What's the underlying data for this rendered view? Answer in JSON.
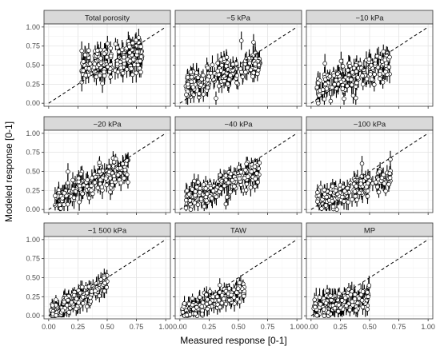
{
  "figure": {
    "xlabel": "Measured response [0-1]",
    "ylabel": "Modeled response [0-1]"
  },
  "chart_data": {
    "type": "scatter",
    "xlim": [
      0,
      1
    ],
    "ylim": [
      0,
      1
    ],
    "x_ticks": [
      "0.00",
      "0.25",
      "0.50",
      "0.75",
      "1.00"
    ],
    "y_ticks": [
      "0.00",
      "0.25",
      "0.50",
      "0.75",
      "1.00"
    ],
    "grid": true,
    "reference_line": {
      "slope": 1,
      "intercept": 0,
      "style": "dashed"
    },
    "point_style": "white circles with black outline and black vertical error bars",
    "panels": [
      {
        "title": "Total porosity",
        "x_range": [
          0.28,
          0.8
        ],
        "center": [
          0.52,
          0.55
        ],
        "slope": 0.4,
        "spread": 0.11,
        "err": 0.1
      },
      {
        "title": "−5 kPa",
        "x_range": [
          0.05,
          0.7
        ],
        "center": [
          0.37,
          0.4
        ],
        "slope": 0.5,
        "spread": 0.09,
        "err": 0.1
      },
      {
        "title": "−10 kPa",
        "x_range": [
          0.05,
          0.68
        ],
        "center": [
          0.35,
          0.35
        ],
        "slope": 0.55,
        "spread": 0.1,
        "err": 0.1
      },
      {
        "title": "−20 kPa",
        "x_range": [
          0.05,
          0.68
        ],
        "center": [
          0.33,
          0.32
        ],
        "slope": 0.65,
        "spread": 0.09,
        "err": 0.09
      },
      {
        "title": "−40 kPa",
        "x_range": [
          0.05,
          0.68
        ],
        "center": [
          0.35,
          0.3
        ],
        "slope": 0.6,
        "spread": 0.09,
        "err": 0.09
      },
      {
        "title": "−100 kPa",
        "x_range": [
          0.05,
          0.68
        ],
        "center": [
          0.35,
          0.27
        ],
        "slope": 0.6,
        "spread": 0.08,
        "err": 0.09
      },
      {
        "title": "−1 500 kPa",
        "x_range": [
          0.02,
          0.5
        ],
        "center": [
          0.26,
          0.24
        ],
        "slope": 0.85,
        "spread": 0.06,
        "err": 0.08
      },
      {
        "title": "TAW",
        "x_range": [
          0.02,
          0.55
        ],
        "center": [
          0.27,
          0.2
        ],
        "slope": 0.55,
        "spread": 0.06,
        "err": 0.08
      },
      {
        "title": "MP",
        "x_range": [
          0.02,
          0.5
        ],
        "center": [
          0.25,
          0.17
        ],
        "slope": 0.3,
        "spread": 0.07,
        "err": 0.1
      }
    ]
  }
}
